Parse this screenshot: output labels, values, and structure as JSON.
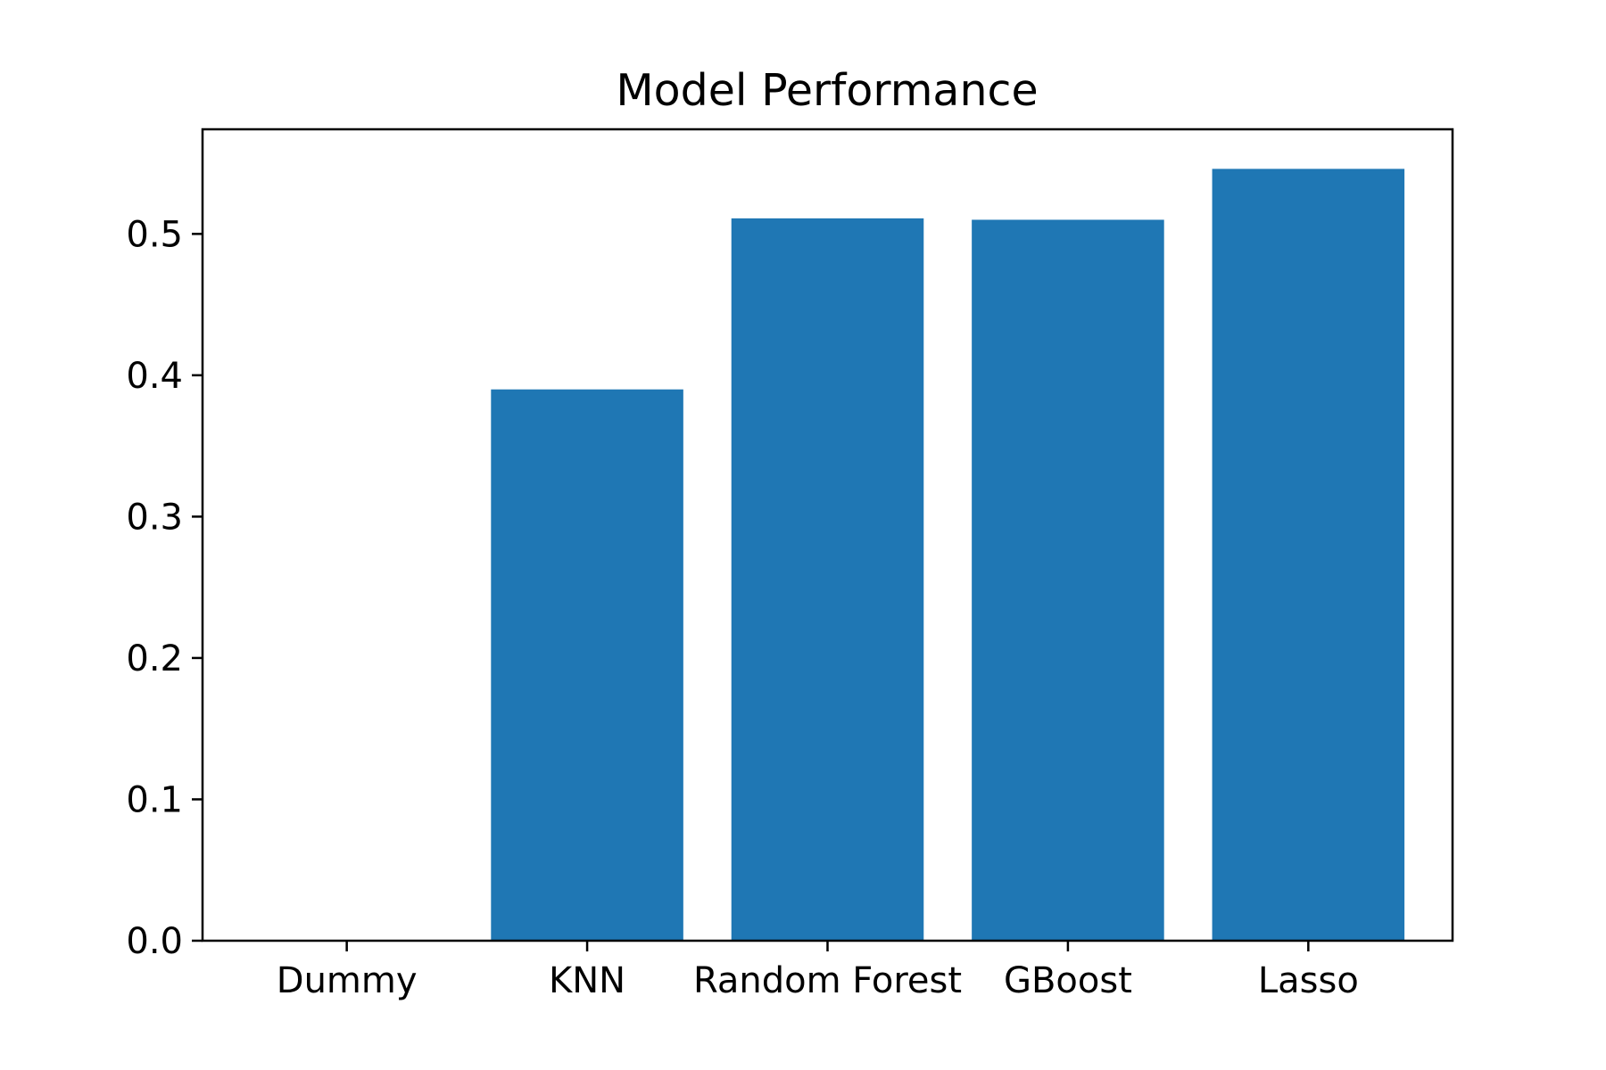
{
  "chart_data": {
    "type": "bar",
    "title": "Model Performance",
    "xlabel": "",
    "ylabel": "",
    "categories": [
      "Dummy",
      "KNN",
      "Random Forest",
      "GBoost",
      "Lasso"
    ],
    "values": [
      0.0,
      0.39,
      0.511,
      0.51,
      0.546
    ],
    "ylim": [
      0.0,
      0.574
    ],
    "yticks": [
      0.0,
      0.1,
      0.2,
      0.3,
      0.4,
      0.5
    ],
    "ytick_labels": [
      "0.0",
      "0.1",
      "0.2",
      "0.3",
      "0.4",
      "0.5"
    ],
    "grid": false,
    "legend": null,
    "bar_color": "#1f77b4"
  }
}
